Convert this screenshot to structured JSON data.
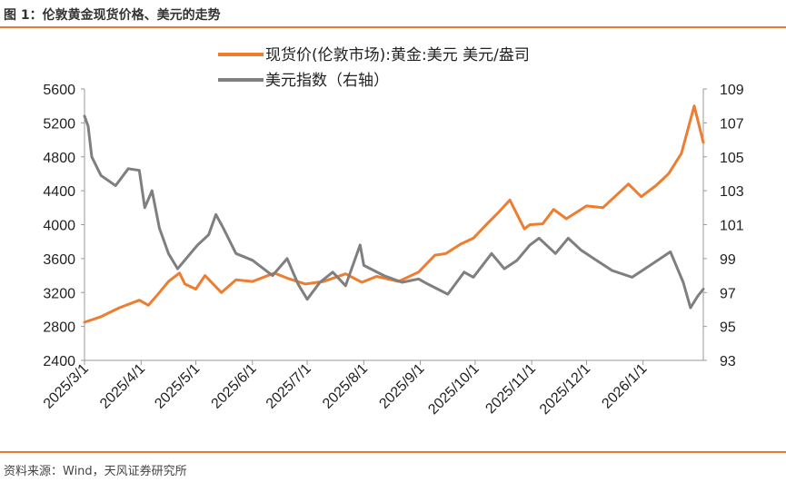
{
  "figure": {
    "title": "图 1：伦敦黄金现货价格、美元的走势",
    "source": "资料来源：Wind，天风证券研究所"
  },
  "colors": {
    "gold": "#ed7d31",
    "usd": "#7f7f7f",
    "accent": "#e87b2a"
  },
  "chart_data": {
    "type": "line",
    "legend_position": "top",
    "grid": false,
    "x_start": "2025-03-01",
    "x_end": "2026-02-03",
    "x_ticks": [
      "2025/3/1",
      "2025/4/1",
      "2025/5/1",
      "2025/6/1",
      "2025/7/1",
      "2025/8/1",
      "2025/9/1",
      "2025/10/1",
      "2025/11/1",
      "2025/12/1",
      "2026/1/1"
    ],
    "y_left": {
      "min": 2400,
      "max": 5600,
      "ticks": [
        "2400",
        "2800",
        "3200",
        "3600",
        "4000",
        "4400",
        "4800",
        "5200",
        "5600"
      ]
    },
    "y_right": {
      "min": 93,
      "max": 109,
      "ticks": [
        "93",
        "95",
        "97",
        "99",
        "101",
        "103",
        "105",
        "107",
        "109"
      ]
    },
    "series": [
      {
        "name": "现货价(伦敦市场):黄金:美元 美元/盎司",
        "axis": "left",
        "points": [
          [
            "2025-03-01",
            2850
          ],
          [
            "2025-03-10",
            2915
          ],
          [
            "2025-03-20",
            3020
          ],
          [
            "2025-03-31",
            3110
          ],
          [
            "2025-04-05",
            3050
          ],
          [
            "2025-04-11",
            3200
          ],
          [
            "2025-04-16",
            3330
          ],
          [
            "2025-04-22",
            3430
          ],
          [
            "2025-04-25",
            3300
          ],
          [
            "2025-05-01",
            3240
          ],
          [
            "2025-05-06",
            3400
          ],
          [
            "2025-05-15",
            3200
          ],
          [
            "2025-05-23",
            3350
          ],
          [
            "2025-06-01",
            3330
          ],
          [
            "2025-06-13",
            3430
          ],
          [
            "2025-06-20",
            3370
          ],
          [
            "2025-06-30",
            3300
          ],
          [
            "2025-07-10",
            3330
          ],
          [
            "2025-07-22",
            3420
          ],
          [
            "2025-07-31",
            3320
          ],
          [
            "2025-08-08",
            3390
          ],
          [
            "2025-08-20",
            3330
          ],
          [
            "2025-08-31",
            3440
          ],
          [
            "2025-09-09",
            3640
          ],
          [
            "2025-09-15",
            3660
          ],
          [
            "2025-09-23",
            3770
          ],
          [
            "2025-09-30",
            3840
          ],
          [
            "2025-10-08",
            4020
          ],
          [
            "2025-10-14",
            4150
          ],
          [
            "2025-10-20",
            4290
          ],
          [
            "2025-10-28",
            3950
          ],
          [
            "2025-10-31",
            4000
          ],
          [
            "2025-11-07",
            4010
          ],
          [
            "2025-11-13",
            4180
          ],
          [
            "2025-11-20",
            4070
          ],
          [
            "2025-12-01",
            4220
          ],
          [
            "2025-12-10",
            4200
          ],
          [
            "2025-12-24",
            4480
          ],
          [
            "2025-12-31",
            4330
          ],
          [
            "2026-01-08",
            4460
          ],
          [
            "2026-01-15",
            4600
          ],
          [
            "2026-01-22",
            4840
          ],
          [
            "2026-01-29",
            5400
          ],
          [
            "2026-02-03",
            4970
          ]
        ]
      },
      {
        "name": "美元指数（右轴）",
        "axis": "right",
        "points": [
          [
            "2025-03-01",
            107.4
          ],
          [
            "2025-03-03",
            106.8
          ],
          [
            "2025-03-05",
            105.0
          ],
          [
            "2025-03-10",
            103.9
          ],
          [
            "2025-03-18",
            103.3
          ],
          [
            "2025-03-25",
            104.3
          ],
          [
            "2025-03-31",
            104.2
          ],
          [
            "2025-04-03",
            102.0
          ],
          [
            "2025-04-07",
            103.0
          ],
          [
            "2025-04-11",
            100.8
          ],
          [
            "2025-04-16",
            99.3
          ],
          [
            "2025-04-21",
            98.4
          ],
          [
            "2025-04-28",
            99.3
          ],
          [
            "2025-05-02",
            99.8
          ],
          [
            "2025-05-08",
            100.4
          ],
          [
            "2025-05-12",
            101.6
          ],
          [
            "2025-05-16",
            100.8
          ],
          [
            "2025-05-23",
            99.3
          ],
          [
            "2025-06-01",
            98.9
          ],
          [
            "2025-06-12",
            98.0
          ],
          [
            "2025-06-20",
            99.0
          ],
          [
            "2025-06-26",
            97.5
          ],
          [
            "2025-07-01",
            96.6
          ],
          [
            "2025-07-08",
            97.6
          ],
          [
            "2025-07-15",
            98.2
          ],
          [
            "2025-07-22",
            97.4
          ],
          [
            "2025-07-30",
            99.8
          ],
          [
            "2025-08-01",
            98.6
          ],
          [
            "2025-08-12",
            98.0
          ],
          [
            "2025-08-22",
            97.6
          ],
          [
            "2025-08-31",
            97.8
          ],
          [
            "2025-09-05",
            97.5
          ],
          [
            "2025-09-16",
            96.9
          ],
          [
            "2025-09-25",
            98.2
          ],
          [
            "2025-09-30",
            97.9
          ],
          [
            "2025-10-10",
            99.3
          ],
          [
            "2025-10-17",
            98.4
          ],
          [
            "2025-10-24",
            98.9
          ],
          [
            "2025-10-31",
            99.8
          ],
          [
            "2025-11-05",
            100.2
          ],
          [
            "2025-11-14",
            99.3
          ],
          [
            "2025-11-21",
            100.2
          ],
          [
            "2025-11-28",
            99.5
          ],
          [
            "2025-12-05",
            99.0
          ],
          [
            "2025-12-15",
            98.3
          ],
          [
            "2025-12-26",
            97.9
          ],
          [
            "2026-01-02",
            98.4
          ],
          [
            "2026-01-09",
            98.9
          ],
          [
            "2026-01-16",
            99.4
          ],
          [
            "2026-01-23",
            97.6
          ],
          [
            "2026-01-27",
            96.1
          ],
          [
            "2026-01-31",
            96.8
          ],
          [
            "2026-02-03",
            97.2
          ]
        ]
      }
    ]
  }
}
